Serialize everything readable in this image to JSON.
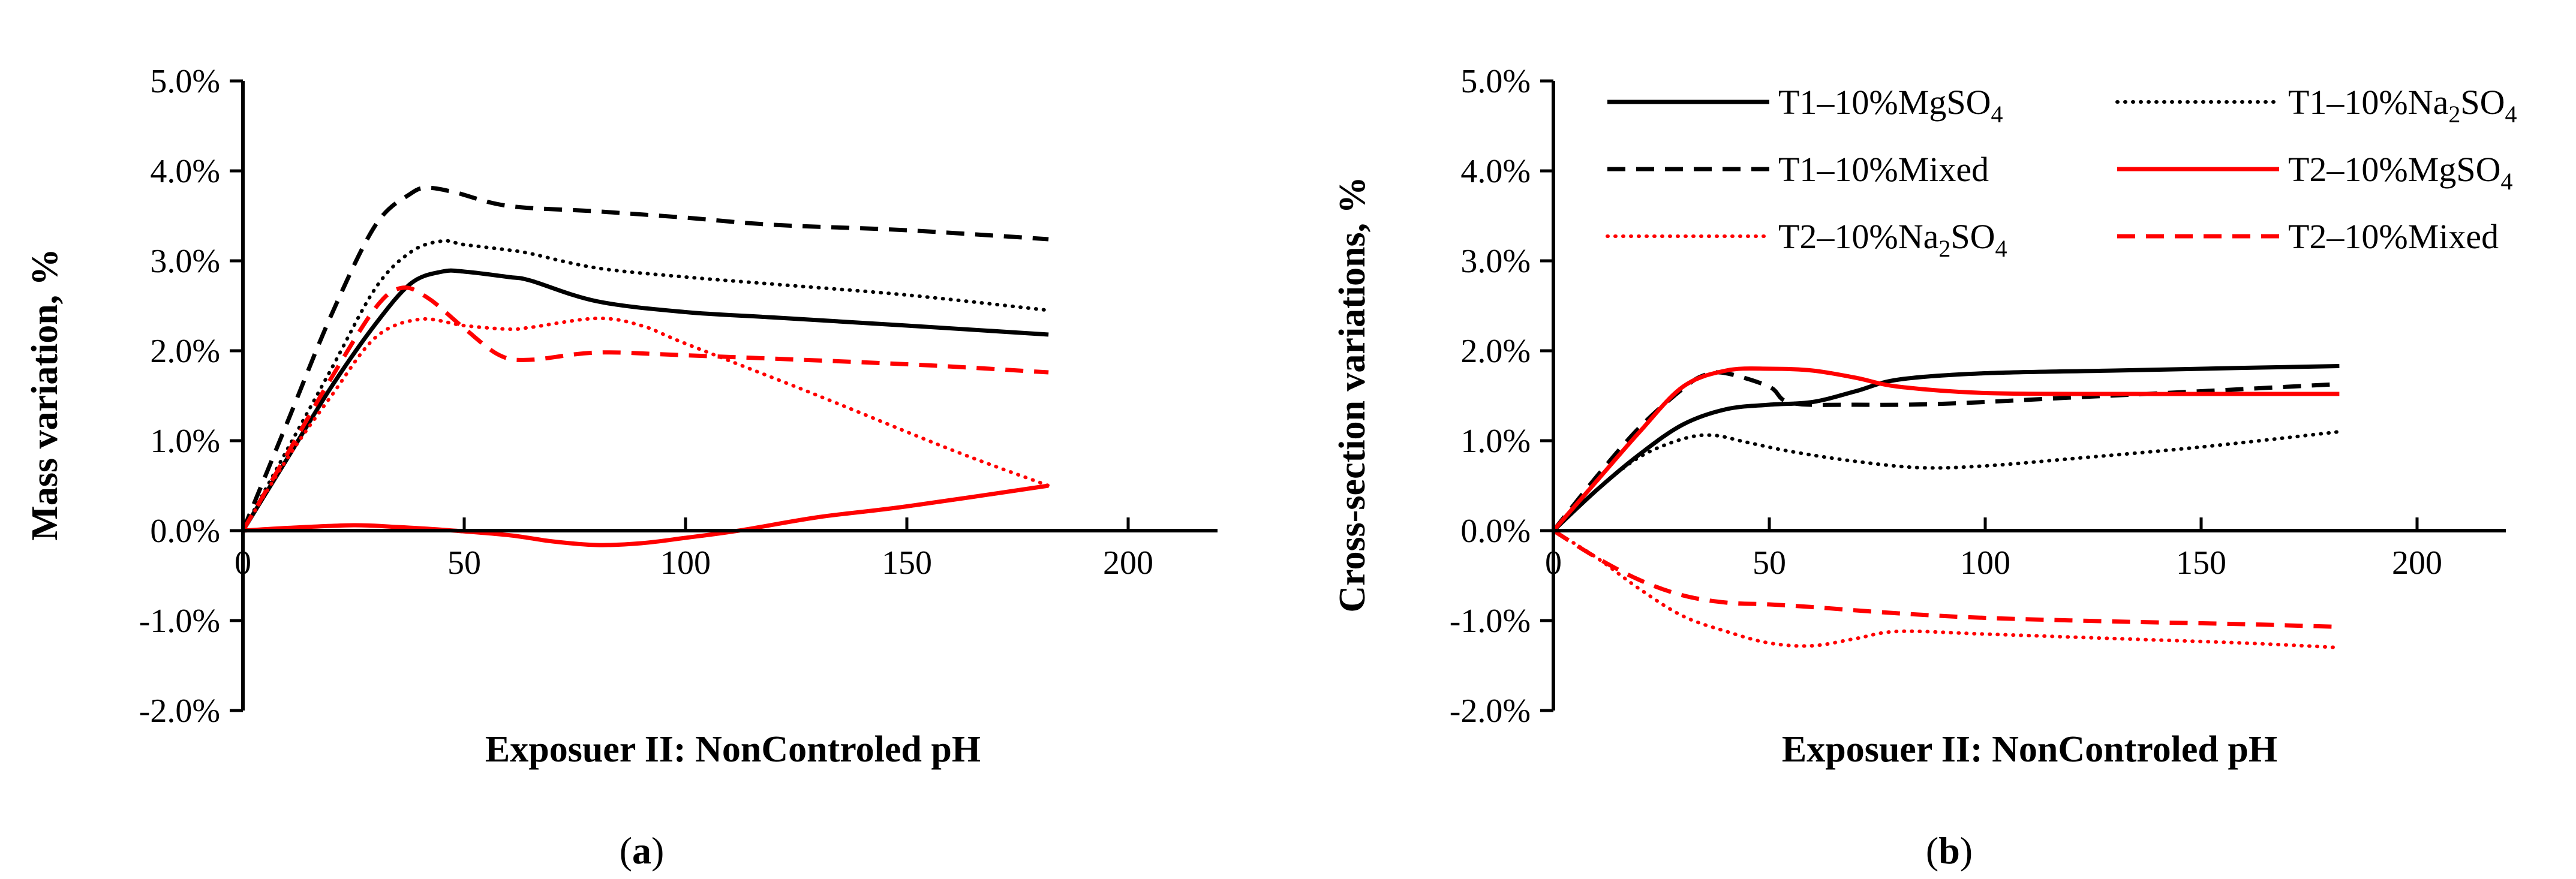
{
  "figure": {
    "caption_a": {
      "open": "(",
      "letter": "a",
      "close": ")"
    },
    "caption_b": {
      "open": "(",
      "letter": "b",
      "close": ")"
    }
  },
  "colors": {
    "black": "#000000",
    "red": "#ff0000"
  },
  "chart_data": [
    {
      "id": "a",
      "type": "line",
      "xlabel": "Exposuer II: NonControled pH",
      "ylabel": "Mass variation, %",
      "xlim": [
        0,
        200
      ],
      "ylim": [
        -0.02,
        0.05
      ],
      "xticks": [
        0,
        50,
        100,
        150,
        200
      ],
      "xtick_labels": [
        "0",
        "50",
        "100",
        "150",
        "200"
      ],
      "yticks": [
        -0.02,
        -0.01,
        0,
        0.01,
        0.02,
        0.03,
        0.04,
        0.05
      ],
      "ytick_labels": [
        "-2.0%",
        "-1.0%",
        "0.0%",
        "1.0%",
        "2.0%",
        "3.0%",
        "4.0%",
        "5.0%"
      ],
      "grid": false,
      "legend": "none",
      "series": [
        {
          "key": "t1_mg",
          "color": "#000000",
          "dash": "solid",
          "x": [
            0,
            10,
            20,
            30,
            38,
            45,
            50,
            60,
            65,
            80,
            100,
            120,
            150,
            182
          ],
          "y": [
            0,
            0.008,
            0.016,
            0.023,
            0.0275,
            0.0288,
            0.0288,
            0.0282,
            0.0278,
            0.0255,
            0.0243,
            0.0237,
            0.0228,
            0.0218
          ]
        },
        {
          "key": "t1_na",
          "color": "#000000",
          "dash": "dotted",
          "x": [
            0,
            10,
            20,
            30,
            38,
            45,
            50,
            60,
            65,
            80,
            100,
            120,
            150,
            182
          ],
          "y": [
            0,
            0.009,
            0.018,
            0.027,
            0.031,
            0.0322,
            0.0318,
            0.0312,
            0.0308,
            0.0292,
            0.0282,
            0.0274,
            0.0262,
            0.0245
          ]
        },
        {
          "key": "t1_mix",
          "color": "#000000",
          "dash": "dashed",
          "x": [
            0,
            10,
            20,
            30,
            38,
            42,
            48,
            60,
            80,
            100,
            120,
            150,
            182
          ],
          "y": [
            0,
            0.012,
            0.024,
            0.034,
            0.0375,
            0.0381,
            0.0376,
            0.0361,
            0.0355,
            0.0348,
            0.034,
            0.0334,
            0.0324
          ]
        },
        {
          "key": "t2_mg",
          "color": "#ff0000",
          "dash": "solid",
          "x": [
            0,
            10,
            25,
            35,
            45,
            60,
            70,
            80,
            90,
            100,
            112,
            130,
            150,
            182
          ],
          "y": [
            0,
            0.0003,
            0.0006,
            0.0004,
            0.0001,
            -0.0005,
            -0.0012,
            -0.0016,
            -0.0014,
            -0.0008,
            0.0,
            0.0015,
            0.0027,
            0.005
          ]
        },
        {
          "key": "t2_na",
          "color": "#ff0000",
          "dash": "dotted",
          "x": [
            0,
            10,
            20,
            30,
            40,
            50,
            60,
            65,
            80,
            90,
            100,
            130,
            160,
            182
          ],
          "y": [
            0,
            0.008,
            0.015,
            0.0215,
            0.0235,
            0.0228,
            0.0224,
            0.0226,
            0.0236,
            0.0228,
            0.0208,
            0.015,
            0.009,
            0.005
          ]
        },
        {
          "key": "t2_mix",
          "color": "#ff0000",
          "dash": "dashed",
          "x": [
            0,
            10,
            20,
            30,
            36,
            42,
            50,
            58,
            65,
            80,
            100,
            150,
            182
          ],
          "y": [
            0,
            0.0085,
            0.017,
            0.0248,
            0.027,
            0.0258,
            0.0225,
            0.0195,
            0.019,
            0.0198,
            0.0195,
            0.0185,
            0.0176
          ]
        }
      ]
    },
    {
      "id": "b",
      "type": "line",
      "xlabel": "Exposuer II: NonControled pH",
      "ylabel": "Cross-section variations,  %",
      "xlim": [
        0,
        200
      ],
      "ylim": [
        -0.02,
        0.05
      ],
      "xticks": [
        0,
        50,
        100,
        150,
        200
      ],
      "xtick_labels": [
        "0",
        "50",
        "100",
        "150",
        "200"
      ],
      "yticks": [
        -0.02,
        -0.01,
        0,
        0.01,
        0.02,
        0.03,
        0.04,
        0.05
      ],
      "ytick_labels": [
        "-2.0%",
        "-1.0%",
        "0.0%",
        "1.0%",
        "2.0%",
        "3.0%",
        "4.0%",
        "5.0%"
      ],
      "grid": false,
      "legend": "top",
      "legend_entries": [
        {
          "key": "t1_mg",
          "label_main": "T1–10%MgSO",
          "label_sub": "4",
          "label_tail": ""
        },
        {
          "key": "t1_na",
          "label_main": "T1–10%Na",
          "label_sub": "2",
          "label_tail": "SO",
          "label_sub2": "4"
        },
        {
          "key": "t1_mix",
          "label_main": "T1–10%Mixed",
          "label_sub": "",
          "label_tail": ""
        },
        {
          "key": "t2_mg",
          "label_main": "T2–10%MgSO",
          "label_sub": "4",
          "label_tail": ""
        },
        {
          "key": "t2_na",
          "label_main": "T2–10%Na",
          "label_sub": "2",
          "label_tail": "SO",
          "label_sub2": "4"
        },
        {
          "key": "t2_mix",
          "label_main": "T2–10%Mixed",
          "label_sub": "",
          "label_tail": ""
        }
      ],
      "series": [
        {
          "key": "t1_mg",
          "color": "#000000",
          "dash": "solid",
          "x": [
            0,
            10,
            20,
            30,
            40,
            50,
            60,
            70,
            80,
            100,
            130,
            160,
            182
          ],
          "y": [
            0,
            0.0045,
            0.0085,
            0.0118,
            0.0135,
            0.014,
            0.0143,
            0.0155,
            0.0168,
            0.0175,
            0.0178,
            0.0181,
            0.0183
          ]
        },
        {
          "key": "t1_na",
          "color": "#000000",
          "dash": "dotted",
          "x": [
            0,
            10,
            20,
            30,
            37,
            45,
            55,
            70,
            85,
            100,
            120,
            150,
            182
          ],
          "y": [
            0,
            0.0045,
            0.0082,
            0.0102,
            0.0106,
            0.0098,
            0.0088,
            0.0077,
            0.007,
            0.0072,
            0.008,
            0.0093,
            0.011
          ]
        },
        {
          "key": "t1_mix",
          "color": "#000000",
          "dash": "dashed",
          "x": [
            0,
            10,
            20,
            30,
            35,
            40,
            50,
            55,
            70,
            90,
            120,
            150,
            182
          ],
          "y": [
            0,
            0.006,
            0.0115,
            0.0158,
            0.0173,
            0.0175,
            0.016,
            0.0142,
            0.014,
            0.0141,
            0.0148,
            0.0155,
            0.0163
          ]
        },
        {
          "key": "t2_mg",
          "color": "#ff0000",
          "dash": "solid",
          "x": [
            0,
            10,
            20,
            30,
            40,
            50,
            60,
            70,
            80,
            100,
            130,
            160,
            182
          ],
          "y": [
            0,
            0.0055,
            0.011,
            0.016,
            0.0178,
            0.018,
            0.0178,
            0.017,
            0.016,
            0.0153,
            0.0152,
            0.0152,
            0.0152
          ]
        },
        {
          "key": "t2_na",
          "color": "#ff0000",
          "dash": "dotted",
          "x": [
            0,
            10,
            20,
            30,
            40,
            50,
            60,
            70,
            80,
            100,
            130,
            160,
            182
          ],
          "y": [
            0,
            -0.003,
            -0.0065,
            -0.0095,
            -0.0112,
            -0.0125,
            -0.0128,
            -0.012,
            -0.0112,
            -0.0115,
            -0.012,
            -0.0125,
            -0.013
          ]
        },
        {
          "key": "t2_mix",
          "color": "#ff0000",
          "dash": "dashed",
          "x": [
            0,
            10,
            20,
            30,
            40,
            50,
            60,
            80,
            100,
            130,
            160,
            182
          ],
          "y": [
            0,
            -0.003,
            -0.0055,
            -0.0072,
            -0.008,
            -0.0082,
            -0.0085,
            -0.0092,
            -0.0097,
            -0.0101,
            -0.0104,
            -0.0107
          ]
        }
      ]
    }
  ]
}
